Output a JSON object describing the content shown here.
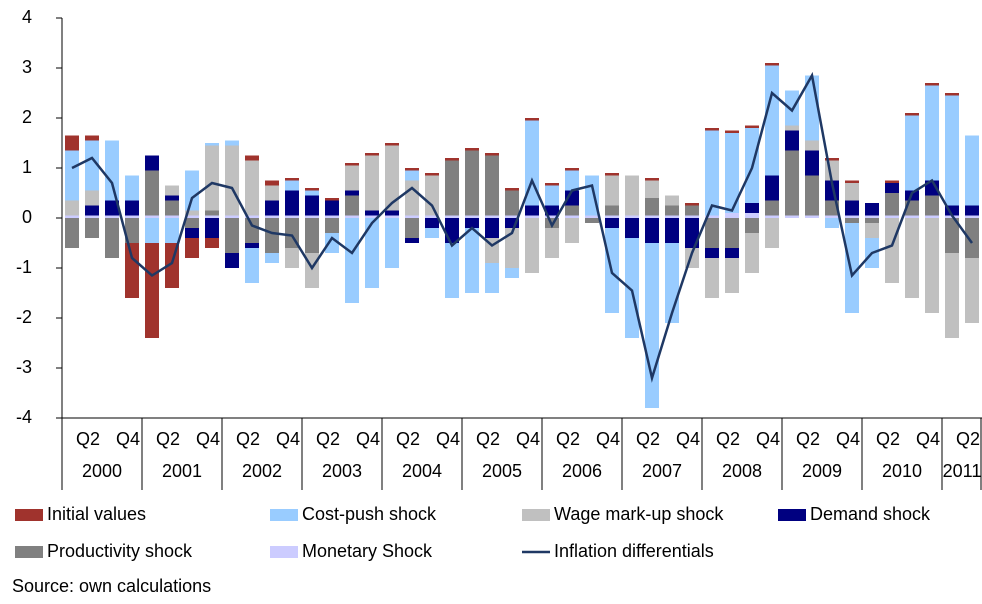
{
  "chart_data": {
    "type": "bar",
    "stacked": true,
    "categories": [
      null,
      "Q2",
      null,
      "Q4",
      null,
      "Q2",
      null,
      "Q4",
      null,
      "Q2",
      null,
      "Q4",
      null,
      "Q2",
      null,
      "Q4",
      null,
      "Q2",
      null,
      "Q4",
      null,
      "Q2",
      null,
      "Q4",
      null,
      "Q2",
      null,
      "Q4",
      null,
      "Q2",
      null,
      "Q4",
      null,
      "Q2",
      null,
      "Q4",
      null,
      "Q2",
      null,
      "Q4",
      null,
      "Q2",
      null,
      "Q4",
      null,
      "Q2"
    ],
    "years": [
      "2000",
      "2001",
      "2002",
      "2003",
      "2004",
      "2005",
      "2006",
      "2007",
      "2008",
      "2009",
      "2010",
      "2011"
    ],
    "series": [
      {
        "name": "Initial values",
        "color": "#a0332d",
        "values": [
          0.3,
          0.1,
          0,
          -1.1,
          -1.9,
          -0.9,
          -0.4,
          -0.2,
          0,
          0.1,
          0.1,
          0.05,
          0.05,
          0.05,
          0.05,
          0.05,
          0.05,
          0.05,
          0.05,
          0.05,
          0.05,
          0.05,
          0.05,
          0.05,
          0.05,
          0.05,
          0,
          0.05,
          0,
          0.05,
          0,
          0.05,
          0.05,
          0.05,
          0.05,
          0.05,
          0,
          0,
          0.05,
          0.05,
          0,
          0.05,
          0.05,
          0.05,
          0.05,
          0
        ]
      },
      {
        "name": "Cost-push shock",
        "color": "#99ccff",
        "values": [
          1.0,
          1.0,
          1.2,
          0.5,
          -0.5,
          -0.5,
          0.8,
          0.05,
          0.1,
          -0.7,
          -0.2,
          0.2,
          0.1,
          -0.4,
          -1.7,
          -1.4,
          -1.0,
          0.2,
          -0.2,
          -1.1,
          -1.3,
          -0.6,
          -0.2,
          1.7,
          0.4,
          0.4,
          0.8,
          -1.7,
          -2.0,
          -3.3,
          -1.6,
          0,
          1.7,
          1.6,
          1.5,
          2.2,
          0.7,
          1.3,
          -0.2,
          -1.8,
          -0.6,
          0,
          1.5,
          1.9,
          2.2,
          1.4
        ]
      },
      {
        "name": "Wage mark-up shock",
        "color": "#c0c0c0",
        "values": [
          0.3,
          0.3,
          0,
          0,
          0,
          0.2,
          0.1,
          1.3,
          1.4,
          1.1,
          0.3,
          -0.4,
          -0.7,
          0,
          0.5,
          1.1,
          1.3,
          0.7,
          0.8,
          0,
          0,
          -0.5,
          -0.8,
          -1.1,
          -0.6,
          -0.5,
          0,
          0.6,
          0.8,
          0.35,
          0.2,
          -0.4,
          -0.8,
          -0.7,
          -0.8,
          -0.6,
          0.1,
          0.2,
          0.4,
          0.35,
          -0.3,
          -1.3,
          -1.6,
          -1.9,
          -1.7,
          -1.3
        ]
      },
      {
        "name": "Demand shock",
        "color": "#000080",
        "values": [
          0,
          0.2,
          0.3,
          0.3,
          0.3,
          0.1,
          -0.2,
          -0.4,
          -0.3,
          -0.1,
          0.3,
          0.5,
          0.4,
          0.3,
          0.1,
          0.1,
          0.1,
          -0.1,
          -0.2,
          -0.5,
          -0.2,
          -0.4,
          -0.2,
          0.2,
          0.2,
          0.3,
          0,
          -0.2,
          -0.4,
          -0.5,
          -0.5,
          -0.6,
          -0.2,
          -0.2,
          0.2,
          0.5,
          0.4,
          0.5,
          0.4,
          0.3,
          0.25,
          0.2,
          0.2,
          0.3,
          0.2,
          0.2
        ]
      },
      {
        "name": "Productivity shock",
        "color": "#808080",
        "values": [
          -0.6,
          -0.4,
          -0.8,
          -0.5,
          0.9,
          0.3,
          -0.2,
          0.1,
          -0.7,
          -0.5,
          -0.7,
          -0.6,
          -0.7,
          -0.3,
          0.4,
          0,
          0,
          -0.4,
          0,
          1.1,
          1.3,
          1.2,
          0.5,
          0,
          -0.2,
          0.2,
          -0.1,
          0.2,
          0,
          0.35,
          0.2,
          0.2,
          -0.6,
          -0.6,
          -0.3,
          0.3,
          1.3,
          0.8,
          0.3,
          -0.1,
          -0.1,
          0.45,
          0.3,
          0.4,
          -0.7,
          -0.8
        ]
      },
      {
        "name": "Monetary Shock",
        "color": "#ccccff",
        "values": [
          0.05,
          0.05,
          0.05,
          0.05,
          0.05,
          0.05,
          0.05,
          0.05,
          0.05,
          0.05,
          0.05,
          0.05,
          0.05,
          0.05,
          0.05,
          0.05,
          0.05,
          0.05,
          0.05,
          0.05,
          0.05,
          0.05,
          0.05,
          0.05,
          0.05,
          0.05,
          0.05,
          0.05,
          0.05,
          0.05,
          0.05,
          0.05,
          0.05,
          0.1,
          0.1,
          0.05,
          0.05,
          0.05,
          0.05,
          0.05,
          0.05,
          0.05,
          0.05,
          0.05,
          0.05,
          0.05
        ]
      }
    ],
    "line": {
      "name": "Inflation differentials",
      "color": "#1f3864",
      "values": [
        1.0,
        1.2,
        0.7,
        -0.8,
        -1.15,
        -0.9,
        0.4,
        0.7,
        0.6,
        -0.15,
        -0.3,
        -0.35,
        -1.0,
        -0.4,
        -0.7,
        -0.1,
        0.3,
        0.6,
        0.25,
        -0.55,
        -0.2,
        -0.55,
        -0.3,
        0.75,
        -0.15,
        0.55,
        0.65,
        -1.1,
        -1.45,
        -3.2,
        -1.9,
        -0.7,
        0.25,
        0.15,
        1.0,
        2.5,
        2.15,
        2.85,
        0.7,
        -1.15,
        -0.7,
        -0.55,
        0.5,
        0.75,
        0.05,
        -0.5
      ]
    },
    "ylim": [
      -4,
      4
    ],
    "yticks": [
      -4,
      -3,
      -2,
      -1,
      0,
      1,
      2,
      3,
      4
    ],
    "source": "Source: own calculations"
  }
}
